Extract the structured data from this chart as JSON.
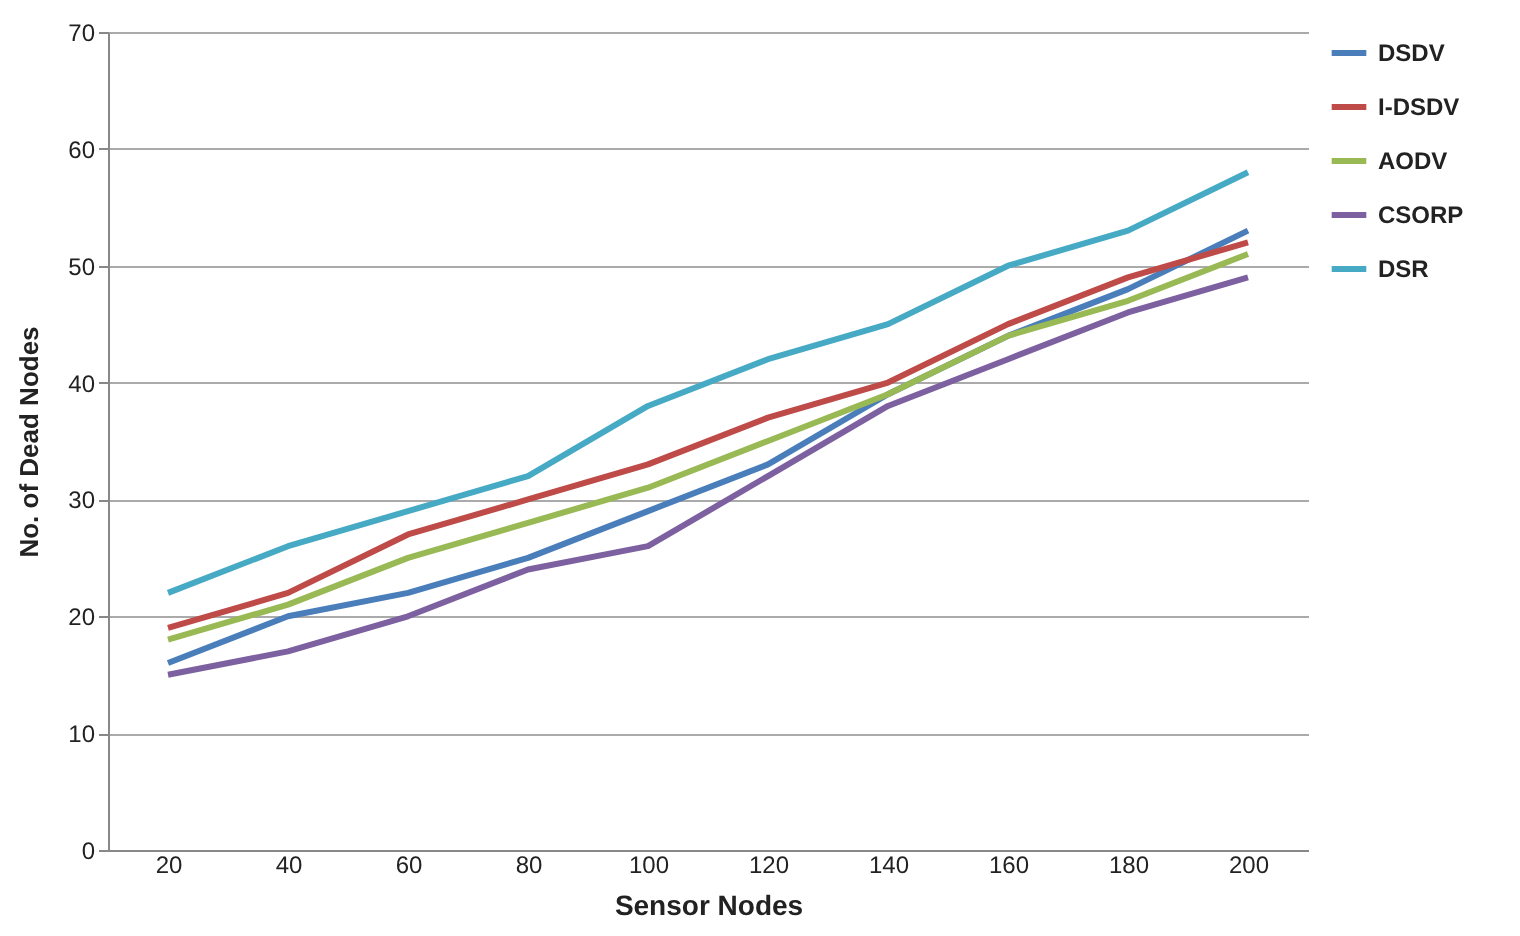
{
  "chart_data": {
    "type": "line",
    "xlabel": "Sensor Nodes",
    "ylabel": "No. of Dead Nodes",
    "categories": [
      "20",
      "40",
      "60",
      "80",
      "100",
      "120",
      "140",
      "160",
      "180",
      "200"
    ],
    "series": [
      {
        "name": "DSDV",
        "color": "#4a7ebb",
        "values": [
          16,
          20,
          22,
          25,
          29,
          33,
          39,
          44,
          48,
          53
        ]
      },
      {
        "name": "I-DSDV",
        "color": "#be4b48",
        "values": [
          19,
          22,
          27,
          30,
          33,
          37,
          40,
          45,
          49,
          52
        ]
      },
      {
        "name": "AODV",
        "color": "#98b954",
        "values": [
          18,
          21,
          25,
          28,
          31,
          35,
          39,
          44,
          47,
          51
        ]
      },
      {
        "name": "CSORP",
        "color": "#7d60a0",
        "values": [
          15,
          17,
          20,
          24,
          26,
          32,
          38,
          42,
          46,
          49
        ]
      },
      {
        "name": "DSR",
        "color": "#46aac5",
        "values": [
          22,
          26,
          29,
          32,
          38,
          42,
          45,
          50,
          53,
          58
        ]
      }
    ],
    "ylim": [
      0,
      70
    ],
    "yticks": [
      0,
      10,
      20,
      30,
      40,
      50,
      60,
      70
    ],
    "grid": "y",
    "legend": "right",
    "marker": "none",
    "line_style": "solid"
  }
}
